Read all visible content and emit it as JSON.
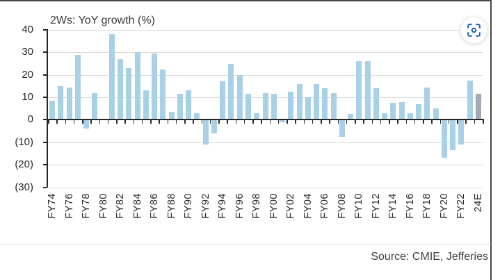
{
  "header": {
    "title": "2Ws: YoY growth (%)"
  },
  "toolbar": {
    "capture_icon": "scan-focus-icon"
  },
  "footer": {
    "source": "Source: CMIE, Jefferies"
  },
  "colors": {
    "bar": "#a8d1e7",
    "bar_highlight": "#a3aab3",
    "grid": "#d9d9d9",
    "axis": "#262626",
    "icon_accent": "#1b60ae"
  },
  "chart_data": {
    "type": "bar",
    "title": "2Ws: YoY growth (%)",
    "categories": [
      "FY74",
      "FY75",
      "FY76",
      "FY77",
      "FY78",
      "FY79",
      "FY80",
      "FY81",
      "FY82",
      "FY83",
      "FY84",
      "FY85",
      "FY86",
      "FY87",
      "FY88",
      "FY89",
      "FY90",
      "FY91",
      "FY92",
      "FY93",
      "FY94",
      "FY95",
      "FY96",
      "FY97",
      "FY98",
      "FY99",
      "FY00",
      "FY01",
      "FY02",
      "FY03",
      "FY04",
      "FY05",
      "FY06",
      "FY07",
      "FY08",
      "FY09",
      "FY10",
      "FY11",
      "FY12",
      "FY13",
      "FY14",
      "FY15",
      "FY16",
      "FY17",
      "FY18",
      "FY19",
      "FY20",
      "FY21",
      "FY22",
      "FY23",
      "24E"
    ],
    "values": [
      8.5,
      15,
      14.5,
      29,
      -4,
      12,
      0,
      38,
      27,
      23,
      30,
      13,
      29.5,
      22.5,
      3.5,
      11.5,
      13,
      3,
      -11,
      -6,
      17,
      25,
      20,
      11.5,
      3,
      12,
      11.5,
      -1,
      12.5,
      16,
      10,
      16,
      14,
      12,
      -7.5,
      2.5,
      26,
      26,
      14,
      3,
      7.5,
      8,
      3,
      7,
      14.5,
      5,
      -17,
      -13.5,
      -11,
      17.5,
      11.5
    ],
    "highlight_category": "24E",
    "x_tick_label_interval": 2,
    "x_tick_labels_shown": [
      "FY74",
      "FY76",
      "FY78",
      "FY80",
      "FY82",
      "FY84",
      "FY86",
      "FY88",
      "FY90",
      "FY92",
      "FY94",
      "FY96",
      "FY98",
      "FY00",
      "FY02",
      "FY04",
      "FY06",
      "FY08",
      "FY10",
      "FY12",
      "FY14",
      "FY16",
      "FY18",
      "FY20",
      "FY22",
      "24E"
    ],
    "yticks": [
      {
        "v": 40,
        "label": "40"
      },
      {
        "v": 30,
        "label": "30"
      },
      {
        "v": 20,
        "label": "20"
      },
      {
        "v": 10,
        "label": "10"
      },
      {
        "v": 0,
        "label": "0"
      },
      {
        "v": -10,
        "label": "(10)"
      },
      {
        "v": -20,
        "label": "(20)"
      },
      {
        "v": -30,
        "label": "(30)"
      }
    ],
    "ylim": [
      -30,
      40
    ],
    "xlabel": "",
    "ylabel": "",
    "grid": "horizontal",
    "legend": false
  }
}
